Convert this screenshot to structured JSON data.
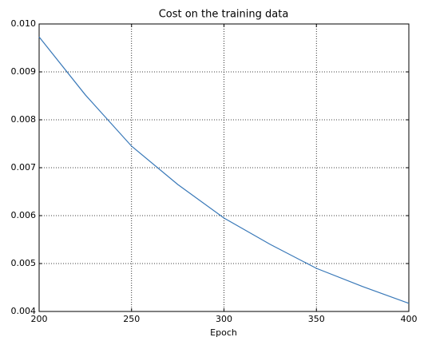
{
  "chart_data": {
    "type": "line",
    "title": "Cost on the training data",
    "x_label": "Epoch",
    "x": [
      200,
      225,
      250,
      275,
      300,
      325,
      350,
      375,
      400
    ],
    "series": [
      {
        "name": "cost",
        "color": "#3878b8",
        "values": [
          0.00973,
          0.00852,
          0.00745,
          0.00665,
          0.00595,
          0.0054,
          0.0049,
          0.00452,
          0.00417
        ]
      }
    ],
    "xlim": [
      200,
      400
    ],
    "xticks": [
      200,
      250,
      300,
      350,
      400
    ],
    "ylim": [
      0.004,
      0.01
    ],
    "yticks": [
      0.004,
      0.005,
      0.006,
      0.007,
      0.008,
      0.009,
      {
        "value": 0.01,
        "label": "0.010"
      }
    ],
    "grid": true
  }
}
